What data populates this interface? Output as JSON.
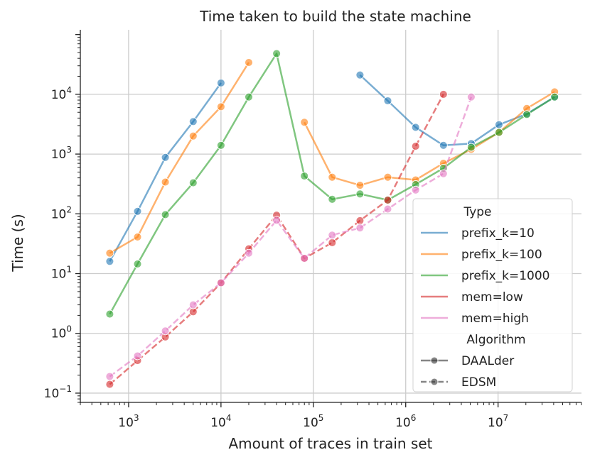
{
  "chart_data": {
    "type": "line",
    "title": "Time taken to build the state machine",
    "xlabel": "Amount of traces in train set",
    "ylabel": "Time (s)",
    "xscale": "log",
    "yscale": "log",
    "xlim": [
      300,
      80000000
    ],
    "ylim": [
      0.07,
      120000
    ],
    "x_ticks": [
      {
        "value": 1000,
        "base": "10",
        "exp": "3"
      },
      {
        "value": 10000,
        "base": "10",
        "exp": "4"
      },
      {
        "value": 100000,
        "base": "10",
        "exp": "5"
      },
      {
        "value": 1000000,
        "base": "10",
        "exp": "6"
      },
      {
        "value": 10000000,
        "base": "10",
        "exp": "7"
      }
    ],
    "y_ticks": [
      {
        "value": 0.1,
        "base": "10",
        "exp": "−1"
      },
      {
        "value": 1,
        "base": "10",
        "exp": "0"
      },
      {
        "value": 10,
        "base": "10",
        "exp": "1"
      },
      {
        "value": 100,
        "base": "10",
        "exp": "2"
      },
      {
        "value": 1000,
        "base": "10",
        "exp": "3"
      },
      {
        "value": 10000,
        "base": "10",
        "exp": "4"
      }
    ],
    "grid": true,
    "legend_position": "lower-right",
    "legend": {
      "type_title": "Type",
      "algorithm_title": "Algorithm",
      "algorithm_entries": [
        {
          "name": "DAALder",
          "dash": "solid"
        },
        {
          "name": "EDSM",
          "dash": "dashed"
        }
      ]
    },
    "series": [
      {
        "name": "prefix_k=10",
        "color": "#1f77b4",
        "dash": "solid",
        "segments": [
          {
            "x": [
              625,
              1250,
              2500,
              5000,
              10000
            ],
            "y": [
              16,
              110,
              880,
              3500,
              15500
            ]
          },
          {
            "x": [
              320000,
              640000,
              1280000,
              2560000,
              5120000,
              10240000,
              20480000,
              40960000
            ],
            "y": [
              21000,
              7800,
              2800,
              1400,
              1500,
              3100,
              4700,
              9000
            ]
          }
        ]
      },
      {
        "name": "prefix_k=100",
        "color": "#ff7f0e",
        "dash": "solid",
        "segments": [
          {
            "x": [
              625,
              1250,
              2500,
              5000,
              10000,
              20000
            ],
            "y": [
              22,
              41,
              340,
              2000,
              6200,
              34000
            ]
          },
          {
            "x": [
              80000,
              160000,
              320000,
              640000,
              1280000,
              2560000,
              5120000,
              10240000,
              20480000,
              40960000
            ],
            "y": [
              3400,
              410,
              300,
              410,
              370,
              700,
              1200,
              2300,
              5800,
              11000
            ]
          }
        ]
      },
      {
        "name": "prefix_k=1000",
        "color": "#2ca02c",
        "dash": "solid",
        "segments": [
          {
            "x": [
              625,
              1250,
              2500,
              5000,
              10000,
              20000,
              40000,
              80000,
              160000,
              320000,
              640000,
              1280000,
              2560000,
              5120000,
              10240000,
              20480000,
              40960000
            ],
            "y": [
              2.1,
              14.5,
              97,
              330,
              1400,
              9000,
              48000,
              430,
              175,
              215,
              170,
              310,
              580,
              1300,
              2300,
              4600,
              9000
            ]
          }
        ]
      },
      {
        "name": "mem=low",
        "color": "#d62728",
        "dash": "dashed",
        "segments": [
          {
            "x": [
              625,
              1250,
              2500,
              5000,
              10000,
              20000,
              40000,
              80000,
              160000,
              320000,
              640000,
              1280000,
              2560000
            ],
            "y": [
              0.14,
              0.35,
              0.87,
              2.3,
              7.0,
              26,
              95,
              18,
              33,
              77,
              170,
              1350,
              10000
            ]
          }
        ]
      },
      {
        "name": "mem=high",
        "color": "#e377c2",
        "dash": "dashed",
        "segments": [
          {
            "x": [
              625,
              1250,
              2500,
              5000,
              10000,
              20000,
              40000,
              80000,
              160000,
              320000,
              640000,
              1280000,
              2560000,
              5120000
            ],
            "y": [
              0.19,
              0.42,
              1.1,
              3.0,
              7.0,
              22,
              78,
              18,
              44,
              58,
              120,
              250,
              470,
              9000
            ]
          }
        ]
      }
    ]
  }
}
